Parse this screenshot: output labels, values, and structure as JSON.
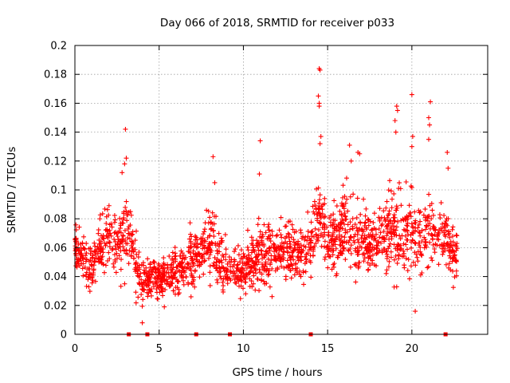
{
  "chart_data": {
    "type": "scatter",
    "title": "Day 066 of 2018, SRMTID for receiver p033",
    "xlabel": "GPS time / hours",
    "ylabel": "SRMTID / TECUs",
    "xlim": [
      0,
      24.5
    ],
    "ylim": [
      0,
      0.2
    ],
    "xticks": [
      0,
      5,
      10,
      15,
      20
    ],
    "xtick_labels": [
      "0",
      "5",
      "10",
      "15",
      "20"
    ],
    "yticks": [
      0,
      0.02,
      0.04,
      0.06,
      0.08,
      0.1,
      0.12,
      0.14,
      0.16,
      0.18,
      0.2
    ],
    "ytick_labels": [
      "0",
      "0.02",
      "0.04",
      "0.06",
      "0.08",
      "0.1",
      "0.12",
      "0.14",
      "0.16",
      "0.18",
      "0.2"
    ],
    "grid": true,
    "marker": "+",
    "color": "#ff0000",
    "x_range": [
      0,
      22.7
    ],
    "envelope": {
      "x": [
        0,
        0.5,
        1,
        1.5,
        2,
        2.5,
        3,
        3.5,
        4,
        4.5,
        5,
        5.5,
        6,
        6.5,
        7,
        7.5,
        8,
        8.5,
        9,
        9.5,
        10,
        10.5,
        11,
        11.5,
        12,
        12.5,
        13,
        13.5,
        14,
        14.5,
        15,
        15.5,
        16,
        16.5,
        17,
        17.5,
        18,
        18.5,
        19,
        19.5,
        20,
        20.5,
        21,
        21.5,
        22,
        22.5,
        22.7
      ],
      "low": [
        0.04,
        0.025,
        0.02,
        0.03,
        0.03,
        0.02,
        0.03,
        0.02,
        0.01,
        0.015,
        0.015,
        0.015,
        0.015,
        0.015,
        0.02,
        0.025,
        0.02,
        0.02,
        0.02,
        0.02,
        0.015,
        0.012,
        0.015,
        0.02,
        0.025,
        0.03,
        0.025,
        0.025,
        0.025,
        0.04,
        0.035,
        0.03,
        0.03,
        0.025,
        0.02,
        0.025,
        0.03,
        0.03,
        0.025,
        0.02,
        0.02,
        0.03,
        0.035,
        0.03,
        0.025,
        0.025,
        0.03
      ],
      "high": [
        0.085,
        0.075,
        0.07,
        0.09,
        0.105,
        0.09,
        0.12,
        0.09,
        0.06,
        0.06,
        0.06,
        0.065,
        0.075,
        0.08,
        0.08,
        0.085,
        0.11,
        0.085,
        0.07,
        0.065,
        0.075,
        0.085,
        0.09,
        0.09,
        0.09,
        0.085,
        0.09,
        0.08,
        0.095,
        0.135,
        0.09,
        0.1,
        0.12,
        0.11,
        0.11,
        0.1,
        0.1,
        0.11,
        0.12,
        0.11,
        0.12,
        0.1,
        0.12,
        0.1,
        0.11,
        0.085,
        0.075
      ]
    },
    "outliers": [
      {
        "x": 2.8,
        "y": 0.112
      },
      {
        "x": 3.0,
        "y": 0.142
      },
      {
        "x": 2.95,
        "y": 0.118
      },
      {
        "x": 3.05,
        "y": 0.122
      },
      {
        "x": 8.2,
        "y": 0.123
      },
      {
        "x": 8.3,
        "y": 0.105
      },
      {
        "x": 11.0,
        "y": 0.134
      },
      {
        "x": 10.95,
        "y": 0.111
      },
      {
        "x": 14.5,
        "y": 0.184
      },
      {
        "x": 14.55,
        "y": 0.183
      },
      {
        "x": 14.45,
        "y": 0.165
      },
      {
        "x": 14.5,
        "y": 0.16
      },
      {
        "x": 14.5,
        "y": 0.158
      },
      {
        "x": 14.6,
        "y": 0.137
      },
      {
        "x": 14.55,
        "y": 0.132
      },
      {
        "x": 16.3,
        "y": 0.131
      },
      {
        "x": 16.4,
        "y": 0.12
      },
      {
        "x": 16.8,
        "y": 0.126
      },
      {
        "x": 16.9,
        "y": 0.125
      },
      {
        "x": 19.1,
        "y": 0.158
      },
      {
        "x": 19.15,
        "y": 0.155
      },
      {
        "x": 19.0,
        "y": 0.148
      },
      {
        "x": 19.05,
        "y": 0.14
      },
      {
        "x": 20.0,
        "y": 0.166
      },
      {
        "x": 20.05,
        "y": 0.137
      },
      {
        "x": 20.0,
        "y": 0.13
      },
      {
        "x": 21.1,
        "y": 0.161
      },
      {
        "x": 21.0,
        "y": 0.15
      },
      {
        "x": 21.05,
        "y": 0.145
      },
      {
        "x": 21.0,
        "y": 0.135
      },
      {
        "x": 22.1,
        "y": 0.126
      },
      {
        "x": 22.15,
        "y": 0.115
      },
      {
        "x": 20.2,
        "y": 0.016
      },
      {
        "x": 4.0,
        "y": 0.008
      }
    ],
    "gaps": [
      3.2,
      4.3,
      7.2,
      9.2,
      14.0,
      22.0
    ]
  }
}
